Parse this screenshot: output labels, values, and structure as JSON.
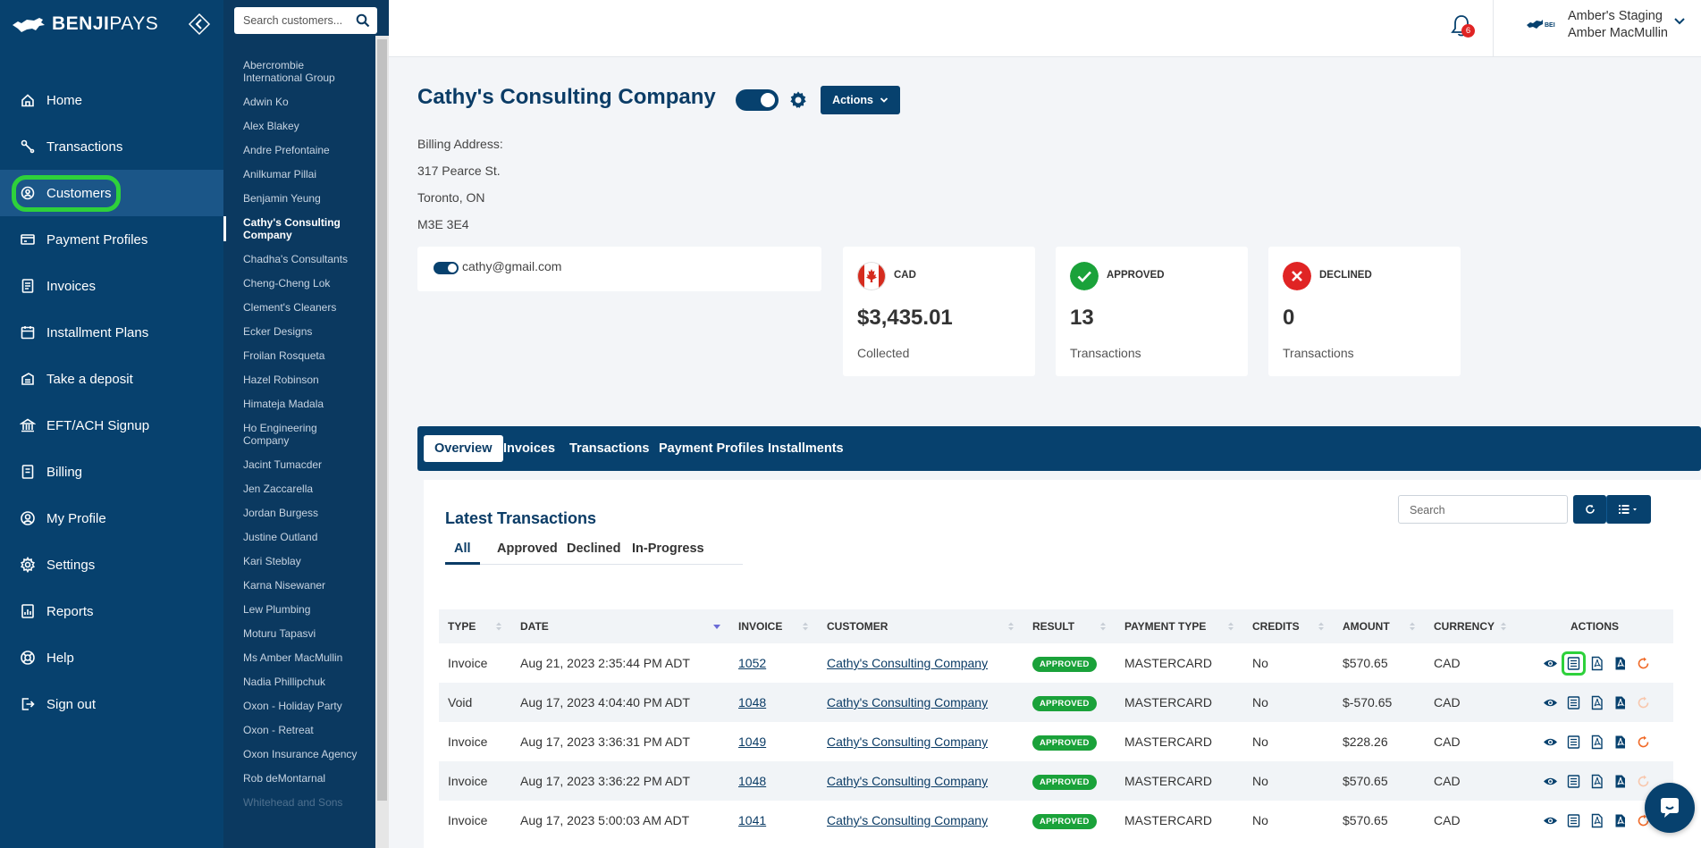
{
  "brand": {
    "name_bold": "BENJI",
    "name_light": "PAYS"
  },
  "nav": {
    "items": [
      {
        "label": "Home",
        "icon": "home-icon"
      },
      {
        "label": "Transactions",
        "icon": "transactions-icon"
      },
      {
        "label": "Customers",
        "icon": "customers-icon"
      },
      {
        "label": "Payment Profiles",
        "icon": "payment-profiles-icon"
      },
      {
        "label": "Invoices",
        "icon": "invoice-icon"
      },
      {
        "label": "Installment Plans",
        "icon": "calendar-icon"
      },
      {
        "label": "Take a deposit",
        "icon": "deposit-icon"
      },
      {
        "label": "EFT/ACH Signup",
        "icon": "bank-icon"
      },
      {
        "label": "Billing",
        "icon": "billing-icon"
      },
      {
        "label": "My Profile",
        "icon": "profile-icon"
      },
      {
        "label": "Settings",
        "icon": "gear-icon"
      },
      {
        "label": "Reports",
        "icon": "reports-icon"
      },
      {
        "label": "Help",
        "icon": "help-icon"
      },
      {
        "label": "Sign out",
        "icon": "sign-out-icon"
      }
    ],
    "active_index": 2
  },
  "customer_search": {
    "placeholder": "Search customers..."
  },
  "customers": [
    "Abercrombie International Group",
    "Adwin Ko",
    "Alex Blakey",
    "Andre Prefontaine",
    "Anilkumar Pillai",
    "Benjamin Yeung",
    "Cathy's Consulting Company",
    "Chadha's Consultants",
    "Cheng-Cheng Lok",
    "Clement's Cleaners",
    "Ecker Designs",
    "Froilan Rosqueta",
    "Hazel Robinson",
    "Himateja Madala",
    "Ho Engineering Company",
    "Jacint Tumacder",
    "Jen Zaccarella",
    "Jordan Burgess",
    "Justine Outland",
    "Kari Steblay",
    "Karna Nisewaner",
    "Lew Plumbing",
    "Moturu Tapasvi",
    "Ms Amber MacMullin",
    "Nadia Phillipchuk",
    "Oxon - Holiday Party",
    "Oxon - Retreat",
    "Oxon Insurance Agency",
    "Rob deMontarnal",
    "Whitehead and Sons"
  ],
  "customers_active_index": 6,
  "header": {
    "notification_count": "6",
    "org_name": "Amber's Staging",
    "user_name": "Amber MacMullin"
  },
  "customer": {
    "name": "Cathy's Consulting Company",
    "actions_label": "Actions",
    "billing_label": "Billing Address:",
    "address_line1": "317 Pearce St.",
    "address_line2": "Toronto, ON",
    "address_line3": "M3E 3E4",
    "email": "cathy@gmail.com"
  },
  "stats": {
    "collected": {
      "label": "CAD",
      "value": "$3,435.01",
      "sub": "Collected"
    },
    "approved": {
      "label": "APPROVED",
      "value": "13",
      "sub": "Transactions"
    },
    "declined": {
      "label": "DECLINED",
      "value": "0",
      "sub": "Transactions"
    }
  },
  "tabs": [
    "Overview",
    "Invoices",
    "Transactions",
    "Payment Profiles",
    "Installments"
  ],
  "transactions": {
    "title": "Latest Transactions",
    "search_placeholder": "Search",
    "filters": [
      "All",
      "Approved",
      "Declined",
      "In-Progress"
    ],
    "columns": [
      "TYPE",
      "DATE",
      "INVOICE",
      "CUSTOMER",
      "RESULT",
      "PAYMENT TYPE",
      "CREDITS",
      "AMOUNT",
      "CURRENCY",
      "ACTIONS"
    ],
    "rows": [
      {
        "type": "Invoice",
        "date": "Aug 21, 2023 2:35:44 PM ADT",
        "invoice": "1052",
        "customer": "Cathy's Consulting Company",
        "result": "APPROVED",
        "payment_type": "MASTERCARD",
        "credits": "No",
        "amount": "$570.65",
        "currency": "CAD"
      },
      {
        "type": "Void",
        "date": "Aug 17, 2023 4:04:40 PM ADT",
        "invoice": "1048",
        "customer": "Cathy's Consulting Company",
        "result": "APPROVED",
        "payment_type": "MASTERCARD",
        "credits": "No",
        "amount": "$-570.65",
        "currency": "CAD"
      },
      {
        "type": "Invoice",
        "date": "Aug 17, 2023 3:36:31 PM ADT",
        "invoice": "1049",
        "customer": "Cathy's Consulting Company",
        "result": "APPROVED",
        "payment_type": "MASTERCARD",
        "credits": "No",
        "amount": "$228.26",
        "currency": "CAD"
      },
      {
        "type": "Invoice",
        "date": "Aug 17, 2023 3:36:22 PM ADT",
        "invoice": "1048",
        "customer": "Cathy's Consulting Company",
        "result": "APPROVED",
        "payment_type": "MASTERCARD",
        "credits": "No",
        "amount": "$570.65",
        "currency": "CAD"
      },
      {
        "type": "Invoice",
        "date": "Aug 17, 2023 5:00:03 AM ADT",
        "invoice": "1041",
        "customer": "Cathy's Consulting Company",
        "result": "APPROVED",
        "payment_type": "MASTERCARD",
        "credits": "No",
        "amount": "$570.65",
        "currency": "CAD"
      }
    ]
  },
  "colors": {
    "navy": "#07416e",
    "accent_green": "#2ed13b",
    "approved_green": "#1aa23a",
    "declined_red": "#e02424"
  }
}
